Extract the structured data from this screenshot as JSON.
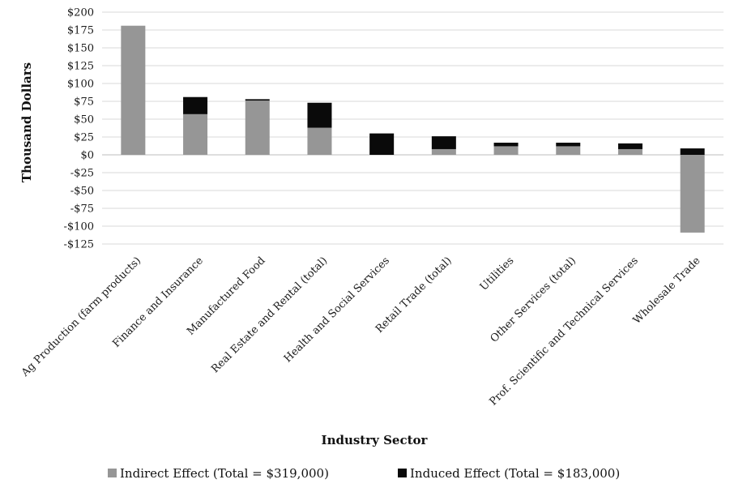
{
  "chart_data": {
    "type": "bar",
    "stacked": true,
    "xlabel": "Industry Sector",
    "ylabel": "Thousand Dollars",
    "ylim": [
      -125,
      200
    ],
    "ytick_step": 25,
    "categories": [
      "Ag Production (farm products)",
      "Finance and Insurance",
      "Manufactured Food",
      "Real Estate and Rental (total)",
      "Health and Social Services",
      "Retail Trade (total)",
      "Utilities",
      "Other Services (total)",
      "Prof. Scientific and Technical Services",
      "Wholesale Trade"
    ],
    "series": [
      {
        "name": "Indirect Effect (Total = $319,000)",
        "color": "#969696",
        "values": [
          181,
          57,
          76,
          38,
          0,
          8,
          12,
          12,
          8,
          -109
        ]
      },
      {
        "name": "Induced Effect (Total = $183,000)",
        "color": "#0a0a0a",
        "values": [
          0,
          24,
          2,
          35,
          30,
          18,
          5,
          5,
          8,
          9
        ]
      }
    ],
    "grid": true,
    "legend_position": "bottom"
  }
}
